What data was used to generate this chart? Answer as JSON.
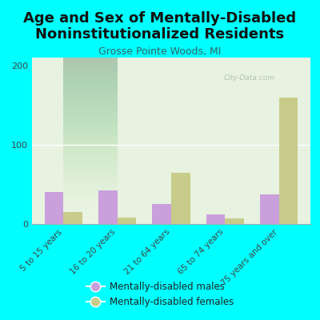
{
  "title_line1": "Age and Sex of Mentally-Disabled",
  "title_line2": "Noninstitutionalized Residents",
  "subtitle": "Grosse Pointe Woods, MI",
  "categories": [
    "5 to 15 years",
    "16 to 20 years",
    "21 to 64 years",
    "65 to 74 years",
    "75 years and over"
  ],
  "males": [
    40,
    42,
    25,
    12,
    37
  ],
  "females": [
    15,
    8,
    65,
    7,
    160
  ],
  "male_color": "#c9a0dc",
  "female_color": "#c8cc8a",
  "bg_color": "#00ffff",
  "ylim": [
    0,
    210
  ],
  "yticks": [
    0,
    100,
    200
  ],
  "watermark": "City-Data.com",
  "legend_male": "Mentally-disabled males",
  "legend_female": "Mentally-disabled females",
  "title_fontsize": 13,
  "subtitle_fontsize": 9,
  "bar_width": 0.35,
  "plot_bg_top": "#e8f0e0",
  "plot_bg_bottom": "#f8faf0"
}
